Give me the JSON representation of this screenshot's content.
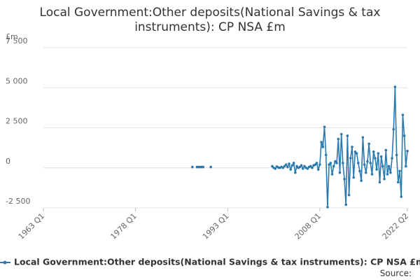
{
  "chart_data": {
    "type": "line",
    "title": "Local Government:Other deposits(National Savings & tax instruments): CP NSA £m",
    "y_label": "£m",
    "source": "Source:",
    "x": [
      "1987 Q2",
      "1987 Q3",
      "1988 Q1",
      "1988 Q2",
      "1988 Q3",
      "1988 Q4",
      "1989 Q1",
      "1989 Q2",
      "1990 Q2",
      "2000 Q1",
      "2000 Q2",
      "2000 Q3",
      "2000 Q4",
      "2001 Q1",
      "2001 Q2",
      "2001 Q3",
      "2001 Q4",
      "2002 Q1",
      "2002 Q2",
      "2002 Q3",
      "2002 Q4",
      "2003 Q1",
      "2003 Q2",
      "2003 Q3",
      "2003 Q4",
      "2004 Q1",
      "2004 Q2",
      "2004 Q3",
      "2004 Q4",
      "2005 Q1",
      "2005 Q2",
      "2005 Q3",
      "2005 Q4",
      "2006 Q1",
      "2006 Q2",
      "2006 Q3",
      "2006 Q4",
      "2007 Q1",
      "2007 Q2",
      "2007 Q3",
      "2007 Q4",
      "2008 Q1",
      "2008 Q2",
      "2008 Q3",
      "2008 Q4",
      "2009 Q1",
      "2009 Q2",
      "2009 Q3",
      "2009 Q4",
      "2010 Q1",
      "2010 Q2",
      "2010 Q3",
      "2010 Q4",
      "2011 Q1",
      "2011 Q2",
      "2011 Q3",
      "2011 Q4",
      "2012 Q1",
      "2012 Q2",
      "2012 Q3",
      "2012 Q4",
      "2013 Q1",
      "2013 Q2",
      "2013 Q3",
      "2013 Q4",
      "2014 Q1",
      "2014 Q2",
      "2014 Q3",
      "2014 Q4",
      "2015 Q1",
      "2015 Q2",
      "2015 Q3",
      "2015 Q4",
      "2016 Q1",
      "2016 Q2",
      "2016 Q3",
      "2016 Q4",
      "2017 Q1",
      "2017 Q2",
      "2017 Q3",
      "2017 Q4",
      "2018 Q1",
      "2018 Q2",
      "2018 Q3",
      "2018 Q4",
      "2019 Q1",
      "2019 Q2",
      "2019 Q3",
      "2019 Q4",
      "2020 Q1",
      "2020 Q2",
      "2020 Q3",
      "2020 Q4",
      "2021 Q1",
      "2021 Q2",
      "2021 Q3",
      "2021 Q4",
      "2022 Q1",
      "2022 Q2"
    ],
    "series": [
      {
        "name": "Local Government:Other deposits(National Savings & tax instruments): CP NSA £m",
        "color": "#2a7ab0",
        "values": [
          50,
          null,
          50,
          50,
          50,
          50,
          50,
          null,
          50,
          null,
          100,
          0,
          -50,
          80,
          20,
          0,
          50,
          0,
          100,
          200,
          50,
          250,
          -100,
          150,
          300,
          -300,
          100,
          0,
          50,
          150,
          -50,
          100,
          0,
          -50,
          50,
          100,
          0,
          150,
          200,
          300,
          -100,
          200,
          1600,
          1300,
          2550,
          800,
          -2450,
          200,
          300,
          -400,
          100,
          400,
          300,
          1800,
          -300,
          2100,
          300,
          -700,
          -2300,
          2000,
          -1700,
          600,
          1300,
          -600,
          1000,
          900,
          300,
          -200,
          -800,
          1900,
          200,
          -300,
          400,
          1500,
          300,
          -400,
          1000,
          600,
          -100,
          900,
          -900,
          700,
          100,
          -700,
          1100,
          -400,
          100,
          -300,
          600,
          2400,
          5050,
          800,
          -900,
          -200,
          -1800,
          3300,
          2000,
          100,
          1050
        ]
      }
    ],
    "xlim": [
      "1963 Q1",
      "2022 Q2"
    ],
    "xticks": [
      "1963 Q1",
      "1978 Q1",
      "1993 Q1",
      "2008 Q1",
      "2022 Q2"
    ],
    "ylim": [
      -2500,
      7500
    ],
    "yticks": [
      {
        "value": -2500,
        "label": "-2 500"
      },
      0,
      {
        "value": 2500,
        "label": "2 500"
      },
      {
        "value": 5000,
        "label": "5 000"
      },
      {
        "value": 7500,
        "label": "7 500"
      }
    ],
    "grid": true
  }
}
